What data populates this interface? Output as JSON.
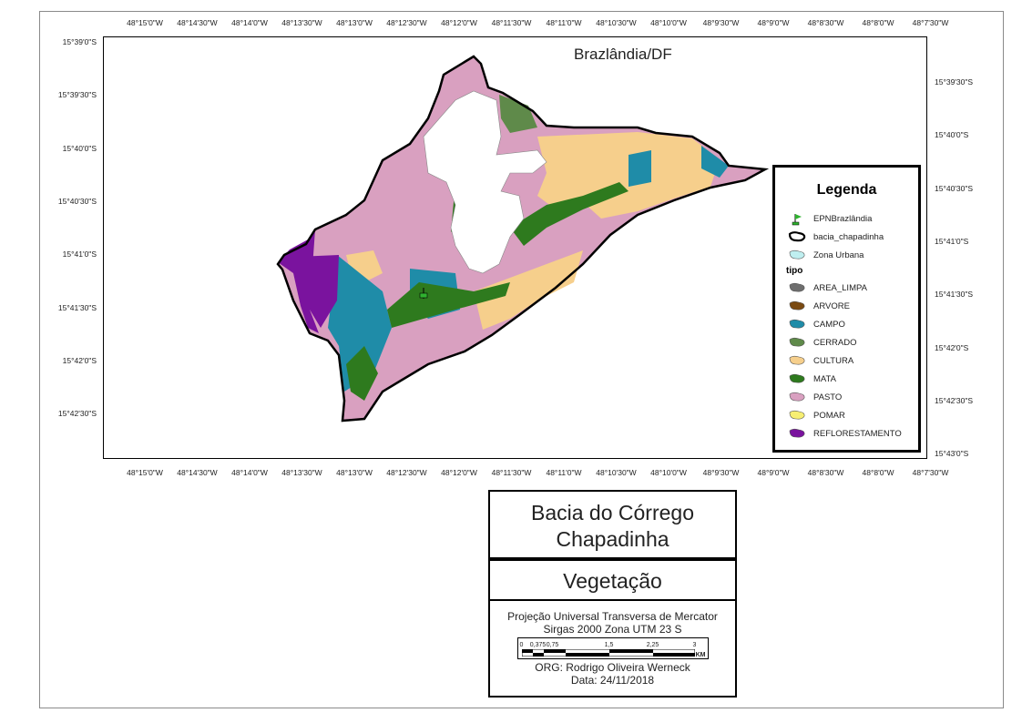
{
  "map": {
    "title": "Brazlândia/DF",
    "top_ticks": [
      "48°15'0\"W",
      "48°14'30\"W",
      "48°14'0\"W",
      "48°13'30\"W",
      "48°13'0\"W",
      "48°12'30\"W",
      "48°12'0\"W",
      "48°11'30\"W",
      "48°11'0\"W",
      "48°10'30\"W",
      "48°10'0\"W",
      "48°9'30\"W",
      "48°9'0\"W",
      "48°8'30\"W",
      "48°8'0\"W",
      "48°7'30\"W"
    ],
    "bottom_ticks": [
      "48°15'0\"W",
      "48°14'30\"W",
      "48°14'0\"W",
      "48°13'30\"W",
      "48°13'0\"W",
      "48°12'30\"W",
      "48°12'0\"W",
      "48°11'30\"W",
      "48°11'0\"W",
      "48°10'30\"W",
      "48°10'0\"W",
      "48°9'30\"W",
      "48°9'0\"W",
      "48°8'30\"W",
      "48°8'0\"W",
      "48°7'30\"W"
    ],
    "left_ticks": [
      "15°39'0\"S",
      "15°39'30\"S",
      "15°40'0\"S",
      "15°40'30\"S",
      "15°41'0\"S",
      "15°41'30\"S",
      "15°42'0\"S",
      "15°42'30\"S"
    ],
    "right_ticks": [
      "15°39'30\"S",
      "15°40'0\"S",
      "15°40'30\"S",
      "15°41'0\"S",
      "15°41'30\"S",
      "15°42'0\"S",
      "15°42'30\"S",
      "15°43'0\"S"
    ]
  },
  "legend": {
    "title": "Legenda",
    "items": [
      {
        "label": "EPNBrazlândia",
        "icon": "flag-icon",
        "color": "#2fb22f"
      },
      {
        "label": "bacia_chapadinha",
        "icon": "outline-icon",
        "color": "#000000"
      },
      {
        "label": "Zona Urbana",
        "icon": "polygon-icon",
        "color": "#bfeff0"
      }
    ],
    "category_heading": "tipo",
    "categories": [
      {
        "label": "AREA_LIMPA",
        "color": "#6e6e6e"
      },
      {
        "label": "ARVORE",
        "color": "#7a4a12"
      },
      {
        "label": "CAMPO",
        "color": "#1f8ca8"
      },
      {
        "label": "CERRADO",
        "color": "#5f8a4a"
      },
      {
        "label": "CULTURA",
        "color": "#f6cf8c"
      },
      {
        "label": "MATA",
        "color": "#2e7a1e"
      },
      {
        "label": "PASTO",
        "color": "#d9a0c0"
      },
      {
        "label": "POMAR",
        "color": "#f7ef72"
      },
      {
        "label": "REFLORESTAMENTO",
        "color": "#7a139e"
      }
    ]
  },
  "title_block": {
    "line1": "Bacia do Córrego",
    "line2": "Chapadinha",
    "subtitle": "Vegetação",
    "proj1": "Projeção Universal Transversa de Mercator",
    "proj2": "Sirgas 2000 Zona UTM 23 S",
    "scale_labels": [
      "0",
      "0,375",
      "0,75",
      "1,5",
      "2,25",
      "3"
    ],
    "scale_unit": "KM",
    "org": "ORG: Rodrigo Oliveira Werneck",
    "date": "Data: 24/11/2018"
  }
}
